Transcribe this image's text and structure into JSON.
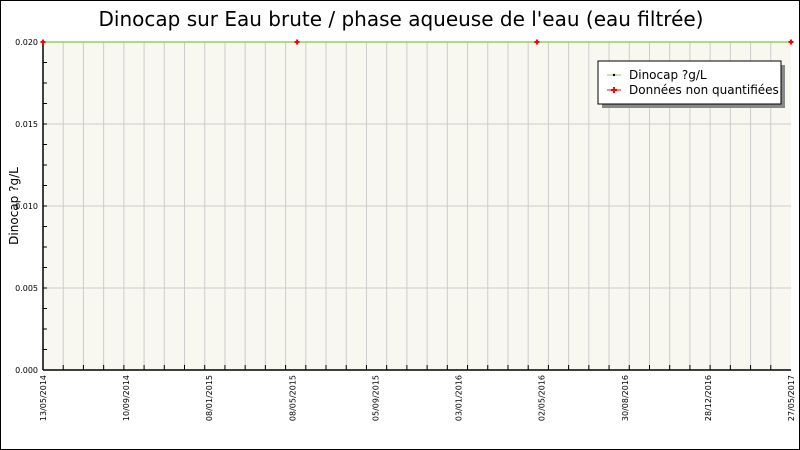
{
  "chart_data": {
    "type": "line",
    "title": "Dinocap sur Eau brute / phase aqueuse de l'eau (eau filtrée)",
    "xlabel": "",
    "ylabel": "Dinocap ?g/L",
    "xlim": [
      "2014-05-13",
      "2017-05-27"
    ],
    "ylim": [
      0,
      0.02
    ],
    "x_tick_labels": [
      "13/05/2014",
      "10/09/2014",
      "08/01/2015",
      "08/05/2015",
      "05/09/2015",
      "03/01/2016",
      "02/05/2016",
      "30/08/2016",
      "28/12/2016",
      "27/05/2017"
    ],
    "y_tick_labels": [
      "0.000",
      "0.005",
      "0.010",
      "0.015",
      "0.020"
    ],
    "grid": true,
    "legend_placement": "top-right",
    "series": [
      {
        "name": "Dinocap ?g/L",
        "color": "#99cc66",
        "x": [
          "2014-05-13",
          "2015-05-25",
          "2016-05-15",
          "2017-05-27"
        ],
        "y": [
          0.02,
          0.02,
          0.02,
          0.02
        ]
      },
      {
        "name": "Données non quantifiées",
        "color": "#ff0000",
        "x": [
          "2014-05-13",
          "2015-05-25",
          "2016-05-15",
          "2017-05-27"
        ],
        "y": [
          0.02,
          0.02,
          0.02,
          0.02
        ]
      }
    ],
    "plot_background": "#f8f8f0"
  }
}
